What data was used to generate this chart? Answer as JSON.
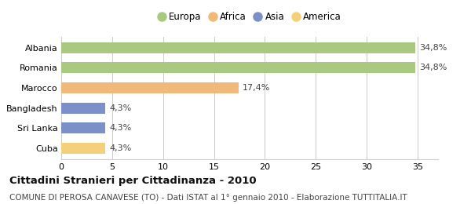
{
  "categories": [
    "Albania",
    "Romania",
    "Marocco",
    "Bangladesh",
    "Sri Lanka",
    "Cuba"
  ],
  "values": [
    34.8,
    34.8,
    17.4,
    4.3,
    4.3,
    4.3
  ],
  "labels": [
    "34,8%",
    "34,8%",
    "17,4%",
    "4,3%",
    "4,3%",
    "4,3%"
  ],
  "colors": [
    "#a8c97f",
    "#a8c97f",
    "#f0b97a",
    "#7b90c9",
    "#7b90c9",
    "#f5d07a"
  ],
  "legend": [
    {
      "label": "Europa",
      "color": "#a8c97f"
    },
    {
      "label": "Africa",
      "color": "#f0b97a"
    },
    {
      "label": "Asia",
      "color": "#7b90c9"
    },
    {
      "label": "America",
      "color": "#f5d07a"
    }
  ],
  "xlim": [
    0,
    37
  ],
  "xticks": [
    0,
    5,
    10,
    15,
    20,
    25,
    30,
    35
  ],
  "title": "Cittadini Stranieri per Cittadinanza - 2010",
  "subtitle": "COMUNE DI PEROSA CANAVESE (TO) - Dati ISTAT al 1° gennaio 2010 - Elaborazione TUTTITALIA.IT",
  "title_fontsize": 9.5,
  "subtitle_fontsize": 7.5,
  "label_fontsize": 8,
  "tick_fontsize": 8,
  "legend_fontsize": 8.5,
  "bar_height": 0.55,
  "background_color": "#ffffff",
  "grid_color": "#cccccc"
}
